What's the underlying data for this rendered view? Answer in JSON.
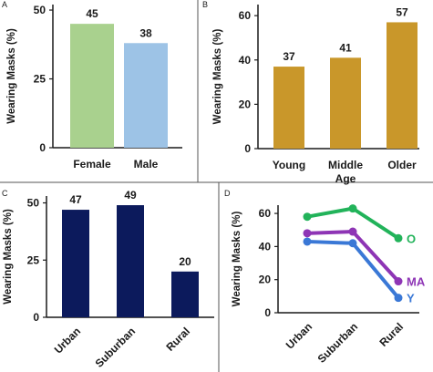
{
  "chart_data": [
    {
      "panel": "A",
      "type": "bar",
      "categories": [
        "Female",
        "Male"
      ],
      "values": [
        45,
        38
      ],
      "colors": [
        "#a9d18e",
        "#9dc3e6"
      ],
      "ylabel": "Wearing Masks (%)",
      "yticks": [
        0,
        25,
        50
      ],
      "ylim": [
        0,
        52
      ],
      "data_labels": [
        "45",
        "38"
      ],
      "grid": false
    },
    {
      "panel": "B",
      "type": "bar",
      "categories": [
        "Young",
        "Middle Age",
        "Older"
      ],
      "category_lines": [
        [
          "Young"
        ],
        [
          "Middle",
          "Age"
        ],
        [
          "Older"
        ]
      ],
      "values": [
        37,
        41,
        57
      ],
      "colors": [
        "#c9972a",
        "#c9972a",
        "#c9972a"
      ],
      "ylabel": "Wearing Masks (%)",
      "yticks": [
        0,
        20,
        40,
        60
      ],
      "ylim": [
        0,
        65
      ],
      "data_labels": [
        "37",
        "41",
        "57"
      ],
      "grid": false
    },
    {
      "panel": "C",
      "type": "bar",
      "categories": [
        "Urban",
        "Suburban",
        "Rural"
      ],
      "values": [
        47,
        49,
        20
      ],
      "colors": [
        "#0c1a5c",
        "#0c1a5c",
        "#0c1a5c"
      ],
      "ylabel": "Wearing Masks (%)",
      "yticks": [
        0,
        25,
        50
      ],
      "ylim": [
        0,
        53
      ],
      "data_labels": [
        "47",
        "49",
        "20"
      ],
      "tick_rotation": -45,
      "grid": false
    },
    {
      "panel": "D",
      "type": "line",
      "categories": [
        "Urban",
        "Suburban",
        "Rural"
      ],
      "series": [
        {
          "name": "O",
          "values": [
            58,
            63,
            45
          ],
          "color": "#22b35a"
        },
        {
          "name": "MA",
          "values": [
            48,
            49,
            19
          ],
          "color": "#8e35b5"
        },
        {
          "name": "Y",
          "values": [
            43,
            42,
            9
          ],
          "color": "#3a78d6"
        }
      ],
      "ylabel": "Wearing Masks (%)",
      "yticks": [
        0,
        20,
        40,
        60
      ],
      "ylim": [
        0,
        65
      ],
      "tick_rotation": -45,
      "grid": false
    }
  ],
  "colors": {
    "axis": "#1a1a1a",
    "divider": "#555555"
  }
}
